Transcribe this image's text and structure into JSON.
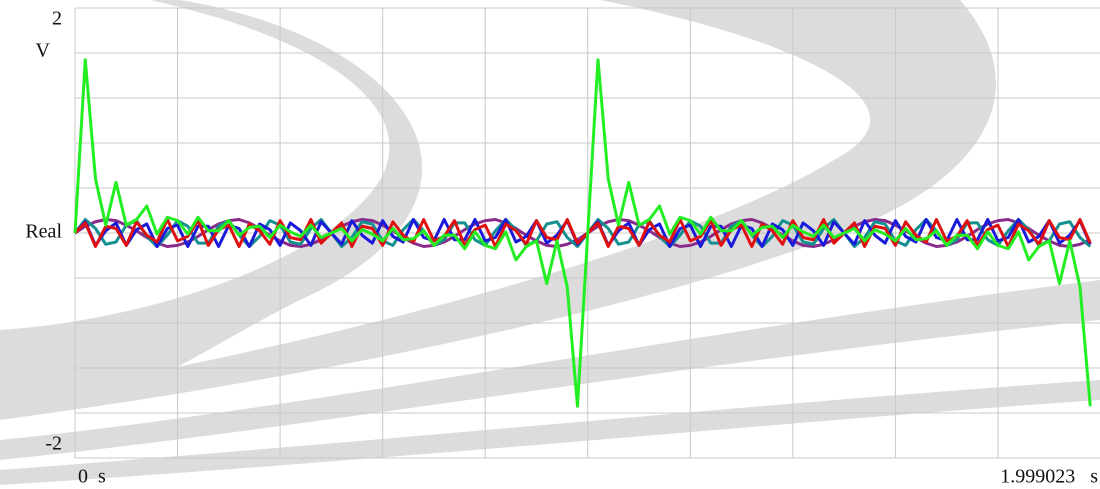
{
  "chart_data": {
    "type": "line",
    "y_label": "V",
    "x": [
      0,
      0.02,
      0.04,
      0.06,
      0.08,
      0.1,
      0.12,
      0.14,
      0.16,
      0.18,
      0.2,
      0.22,
      0.24,
      0.26,
      0.28,
      0.3,
      0.32,
      0.34,
      0.36,
      0.38,
      0.4,
      0.42,
      0.44,
      0.46,
      0.48,
      0.5,
      0.52,
      0.54,
      0.56,
      0.58,
      0.6,
      0.62,
      0.64,
      0.66,
      0.68,
      0.7,
      0.72,
      0.74,
      0.76,
      0.78,
      0.8,
      0.82,
      0.84,
      0.86,
      0.88,
      0.9,
      0.92,
      0.94,
      0.96,
      0.98,
      1,
      1.02,
      1.04,
      1.06,
      1.08,
      1.1,
      1.12,
      1.14,
      1.16,
      1.18,
      1.2,
      1.22,
      1.24,
      1.26,
      1.28,
      1.3,
      1.32,
      1.34,
      1.36,
      1.38,
      1.4,
      1.42,
      1.44,
      1.46,
      1.48,
      1.5,
      1.52,
      1.54,
      1.56,
      1.58,
      1.6,
      1.62,
      1.64,
      1.66,
      1.68,
      1.7,
      1.72,
      1.74,
      1.76,
      1.78,
      1.8,
      1.82,
      1.84,
      1.86,
      1.88,
      1.9,
      1.92,
      1.94,
      1.96,
      1.98
    ],
    "series": [
      {
        "color": "#8a2a8a",
        "values": [
          0,
          0.06,
          0.1,
          0.12,
          0.11,
          0.07,
          0.02,
          -0.04,
          -0.09,
          -0.12,
          -0.11,
          -0.08,
          -0.03,
          0.03,
          0.08,
          0.11,
          0.12,
          0.09,
          0.04,
          -0.02,
          -0.07,
          -0.11,
          -0.12,
          -0.1,
          -0.06,
          0,
          0.06,
          0.1,
          0.12,
          0.11,
          0.07,
          0.02,
          -0.04,
          -0.09,
          -0.12,
          -0.11,
          -0.08,
          -0.03,
          0.03,
          0.08,
          0.11,
          0.12,
          0.09,
          0.04,
          -0.02,
          -0.07,
          -0.11,
          -0.12,
          -0.1,
          -0.06,
          0,
          0.06,
          0.1,
          0.12,
          0.11,
          0.07,
          0.02,
          -0.04,
          -0.09,
          -0.12,
          -0.11,
          -0.08,
          -0.03,
          0.03,
          0.08,
          0.11,
          0.12,
          0.09,
          0.04,
          -0.02,
          -0.07,
          -0.11,
          -0.12,
          -0.1,
          -0.06,
          0,
          0.06,
          0.1,
          0.12,
          0.11,
          0.07,
          0.02,
          -0.04,
          -0.09,
          -0.12,
          -0.11,
          -0.08,
          -0.03,
          0.03,
          0.08,
          0.11,
          0.12,
          0.09,
          0.04,
          -0.02,
          -0.07,
          -0.11,
          -0.12,
          -0.1,
          -0.06
        ]
      },
      {
        "color": "#159090",
        "values": [
          0,
          0.12,
          0.04,
          -0.1,
          -0.08,
          0.07,
          0.11,
          -0.03,
          -0.12,
          -0.02,
          0.11,
          0.06,
          -0.09,
          -0.09,
          0.06,
          0.11,
          -0.02,
          -0.12,
          -0.03,
          0.11,
          0.07,
          -0.08,
          -0.1,
          0.04,
          0.12,
          0,
          -0.12,
          -0.04,
          0.1,
          0.08,
          -0.07,
          -0.11,
          0.03,
          0.12,
          0.02,
          -0.11,
          -0.06,
          0.09,
          0.09,
          -0.06,
          -0.11,
          0.02,
          0.12,
          0.03,
          -0.11,
          -0.07,
          0.08,
          0.1,
          -0.04,
          -0.12,
          0,
          0.12,
          0.04,
          -0.1,
          -0.08,
          0.07,
          0.11,
          -0.03,
          -0.12,
          -0.02,
          0.11,
          0.06,
          -0.09,
          -0.09,
          0.06,
          0.11,
          -0.02,
          -0.12,
          -0.03,
          0.11,
          0.07,
          -0.08,
          -0.1,
          0.04,
          0.12,
          0,
          -0.12,
          -0.04,
          0.1,
          0.08,
          -0.07,
          -0.11,
          0.03,
          0.12,
          0.02,
          -0.11,
          -0.06,
          0.09,
          0.09,
          -0.06,
          -0.11,
          0.02,
          0.12,
          0.03,
          -0.11,
          -0.07,
          0.08,
          0.1,
          -0.04,
          -0.12
        ]
      },
      {
        "color": "#1a1adb",
        "values": [
          0,
          0.1,
          -0.11,
          0.02,
          0.09,
          -0.11,
          0.03,
          0.08,
          -0.12,
          0.04,
          0.07,
          -0.12,
          0.06,
          0.06,
          -0.12,
          0.07,
          0.04,
          -0.12,
          0.08,
          0.03,
          -0.11,
          0.09,
          0.02,
          -0.11,
          0.1,
          0,
          -0.1,
          0.11,
          -0.02,
          -0.09,
          0.11,
          -0.03,
          -0.08,
          0.12,
          -0.04,
          -0.07,
          0.12,
          -0.06,
          -0.06,
          0.12,
          -0.07,
          -0.04,
          0.12,
          -0.08,
          -0.03,
          0.11,
          -0.09,
          -0.02,
          0.11,
          -0.1,
          0,
          0.1,
          -0.11,
          0.02,
          0.09,
          -0.11,
          0.03,
          0.08,
          -0.12,
          0.04,
          0.07,
          -0.12,
          0.06,
          0.06,
          -0.12,
          0.07,
          0.04,
          -0.12,
          0.08,
          0.03,
          -0.11,
          0.09,
          0.02,
          -0.11,
          0.1,
          0,
          -0.1,
          0.11,
          -0.02,
          -0.09,
          0.11,
          -0.03,
          -0.08,
          0.12,
          -0.04,
          -0.07,
          0.12,
          -0.06,
          -0.06,
          0.12,
          -0.07,
          -0.04,
          0.12,
          -0.08,
          -0.03,
          0.11,
          -0.09,
          -0.02,
          0.11,
          -0.1
        ]
      },
      {
        "color": "#e01010",
        "values": [
          0,
          0.09,
          -0.12,
          0.06,
          0.04,
          -0.11,
          0.1,
          -0.02,
          -0.08,
          0.12,
          -0.07,
          -0.03,
          0.11,
          -0.11,
          0.03,
          0.07,
          -0.12,
          0.08,
          0.02,
          -0.1,
          0.11,
          -0.04,
          -0.06,
          0.12,
          -0.09,
          0,
          0.09,
          -0.12,
          0.06,
          0.04,
          -0.11,
          0.1,
          -0.02,
          -0.08,
          0.12,
          -0.07,
          -0.03,
          0.11,
          -0.11,
          0.03,
          0.07,
          -0.12,
          0.08,
          0.02,
          -0.1,
          0.11,
          -0.04,
          -0.06,
          0.12,
          -0.09,
          0,
          0.09,
          -0.12,
          0.06,
          0.04,
          -0.11,
          0.1,
          -0.02,
          -0.08,
          0.12,
          -0.07,
          -0.03,
          0.11,
          -0.11,
          0.03,
          0.07,
          -0.12,
          0.08,
          0.02,
          -0.1,
          0.11,
          -0.04,
          -0.06,
          0.12,
          -0.09,
          0,
          0.09,
          -0.12,
          0.06,
          0.04,
          -0.11,
          0.1,
          -0.02,
          -0.08,
          0.12,
          -0.07,
          -0.03,
          0.11,
          -0.11,
          0.03,
          0.07,
          -0.12,
          0.08,
          0.02,
          -0.1,
          0.11,
          -0.04,
          -0.06,
          0.12,
          -0.09
        ]
      },
      {
        "color": "#22ee22",
        "values": [
          0,
          1.54,
          0.48,
          0.07,
          0.45,
          0.07,
          0.12,
          0.24,
          -0.01,
          0.14,
          0.11,
          -0.01,
          0.14,
          0.02,
          0.02,
          0.11,
          -0.02,
          0.05,
          0.06,
          -0.04,
          0.07,
          0.01,
          -0.03,
          0.07,
          -0.04,
          0,
          0.04,
          -0.07,
          0.03,
          -0.01,
          -0.07,
          0.04,
          -0.06,
          -0.05,
          0.02,
          -0.11,
          -0.02,
          -0.02,
          -0.14,
          0.01,
          -0.11,
          -0.14,
          0.01,
          -0.24,
          -0.12,
          -0.07,
          -0.45,
          -0.07,
          -0.48,
          -1.54,
          0,
          1.54,
          0.48,
          0.07,
          0.45,
          0.07,
          0.12,
          0.24,
          -0.01,
          0.14,
          0.11,
          -0.01,
          0.14,
          0.02,
          0.02,
          0.11,
          -0.02,
          0.05,
          0.06,
          -0.04,
          0.07,
          0.01,
          -0.03,
          0.07,
          -0.04,
          0,
          0.04,
          -0.07,
          0.03,
          -0.01,
          -0.07,
          0.04,
          -0.06,
          -0.05,
          0.02,
          -0.11,
          -0.02,
          -0.02,
          -0.14,
          0.01,
          -0.11,
          -0.14,
          0.01,
          -0.24,
          -0.12,
          -0.07,
          -0.45,
          -0.07,
          -0.48,
          -1.54
        ]
      }
    ],
    "xlim": [
      0,
      1.999023
    ],
    "ylim": [
      -2,
      2
    ],
    "xticks": [
      {
        "value": 0,
        "label": "0  s"
      },
      {
        "value": 1.999023,
        "label": "1.999023   s"
      }
    ],
    "yticks": [
      2,
      {
        "value": 0,
        "label": "Real"
      },
      -2
    ],
    "xgrid": [
      0,
      0.2,
      0.4,
      0.6,
      0.8,
      1,
      1.2,
      1.4,
      1.6,
      1.8
    ],
    "ygrid": [
      -2,
      -1.6,
      -1.2,
      -0.8,
      -0.4,
      0,
      0.4,
      0.8,
      1.2,
      1.6,
      2
    ],
    "grid": true
  }
}
